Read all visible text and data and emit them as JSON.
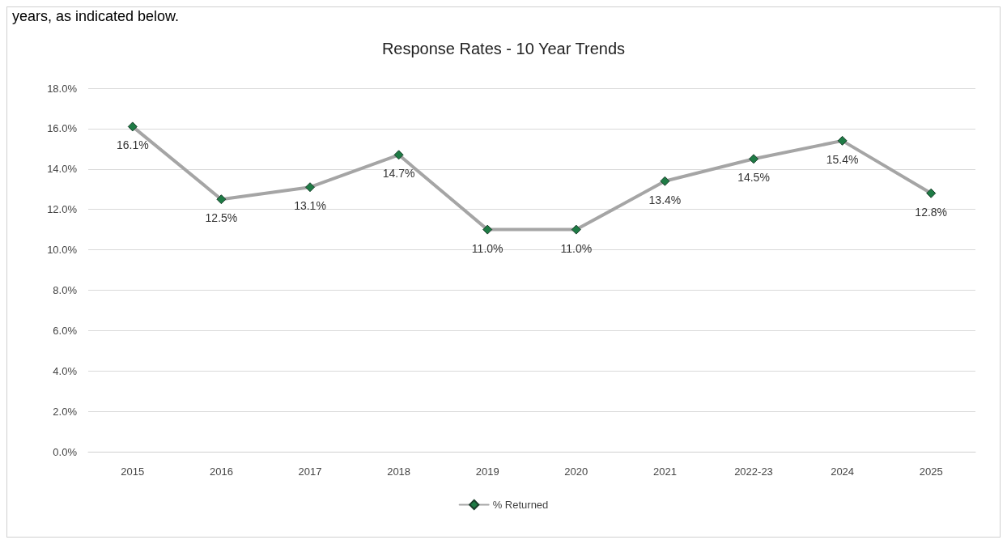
{
  "chart_data": {
    "type": "line",
    "title": "Response Rates - 10 Year Trends",
    "annotations": [
      "years, as indicated below."
    ],
    "categories": [
      "2015",
      "2016",
      "2017",
      "2018",
      "2019",
      "2020",
      "2021",
      "2022-23",
      "2024",
      "2025"
    ],
    "series": [
      {
        "name": "% Returned",
        "color": "#a5a5a5",
        "values": [
          16.1,
          12.5,
          13.1,
          14.7,
          11.0,
          11.0,
          13.4,
          14.5,
          15.4,
          12.8
        ],
        "value_labels": [
          "16.1%",
          "12.5%",
          "13.1%",
          "14.7%",
          "11.0%",
          "11.0%",
          "13.4%",
          "14.5%",
          "15.4%",
          "12.8%"
        ]
      }
    ],
    "ylim": [
      0,
      18
    ],
    "yticks": [
      {
        "value": 0,
        "label": "0.0%"
      },
      {
        "value": 2,
        "label": "2.0%"
      },
      {
        "value": 4,
        "label": "4.0%"
      },
      {
        "value": 6,
        "label": "6.0%"
      },
      {
        "value": 8,
        "label": "8.0%"
      },
      {
        "value": 10,
        "label": "10.0%"
      },
      {
        "value": 12,
        "label": "12.0%"
      },
      {
        "value": 14,
        "label": "14.0%"
      },
      {
        "value": 16,
        "label": "16.0%"
      },
      {
        "value": 18,
        "label": "18.0%"
      }
    ],
    "grid": "y",
    "legend": "bottom",
    "marker": "diamond",
    "line_style": "solid"
  }
}
